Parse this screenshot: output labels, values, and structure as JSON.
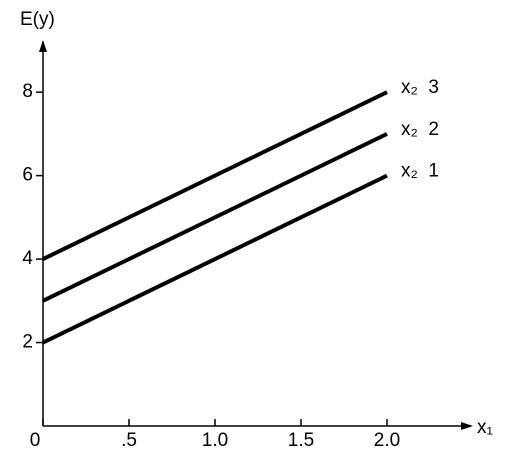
{
  "chart_data": {
    "type": "line",
    "ylabel": "E(y)",
    "xlabel": "x₁",
    "x": [
      0,
      2
    ],
    "series": [
      {
        "name": "x₂  1",
        "color": "#000000",
        "values": [
          2,
          6
        ]
      },
      {
        "name": "x₂  2",
        "color": "#000000",
        "values": [
          3,
          7
        ]
      },
      {
        "name": "x₂  3",
        "color": "#000000",
        "values": [
          4,
          8
        ]
      }
    ],
    "xlim": [
      0,
      2.5
    ],
    "ylim": [
      0,
      9.25
    ],
    "xticks": [
      0,
      {
        "value": 0.5,
        "label": ".5"
      },
      {
        "value": 1,
        "label": "1.0"
      },
      {
        "value": 1.5,
        "label": "1.5"
      },
      {
        "value": 2,
        "label": "2.0"
      }
    ],
    "yticks": [
      2,
      4,
      6,
      8
    ],
    "grid": false
  }
}
